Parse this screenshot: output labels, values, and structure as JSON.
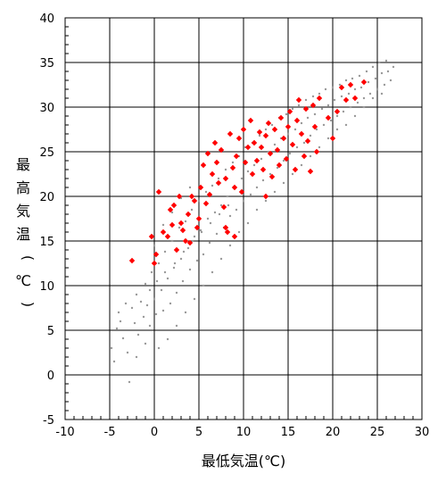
{
  "chart_data": {
    "type": "scatter",
    "xlabel": "最低気温(℃)",
    "ylabel": "最高気温(℃)",
    "xlim": [
      -10,
      30
    ],
    "ylim": [
      -5,
      40
    ],
    "x_ticks": [
      -10,
      -5,
      0,
      5,
      10,
      15,
      20,
      25,
      30
    ],
    "y_ticks": [
      -5,
      0,
      5,
      10,
      15,
      20,
      25,
      30,
      35,
      40
    ],
    "grid": true,
    "colors": {
      "background_series": "#9a9a9a",
      "highlight_series": "#ff0000",
      "grid": "#000000"
    },
    "series": [
      {
        "marker": "dot",
        "color": "#9a9a9a",
        "description": "background cloud",
        "points": [
          [
            -4.8,
            3.0
          ],
          [
            -4.5,
            1.5
          ],
          [
            -4.2,
            5.2
          ],
          [
            -3.8,
            6.0
          ],
          [
            -3.5,
            4.1
          ],
          [
            -3.0,
            2.5
          ],
          [
            -2.8,
            -0.8
          ],
          [
            -2.5,
            7.5
          ],
          [
            -2.2,
            5.8
          ],
          [
            -2.0,
            9.0
          ],
          [
            -1.8,
            4.5
          ],
          [
            -1.5,
            8.2
          ],
          [
            -1.2,
            6.5
          ],
          [
            -1.0,
            10.2
          ],
          [
            -0.8,
            7.8
          ],
          [
            -0.5,
            5.5
          ],
          [
            -0.3,
            11.5
          ],
          [
            0.0,
            8.5
          ],
          [
            0.2,
            6.8
          ],
          [
            0.5,
            12.5
          ],
          [
            0.8,
            9.5
          ],
          [
            1.0,
            7.2
          ],
          [
            1.2,
            13.8
          ],
          [
            1.5,
            10.8
          ],
          [
            1.8,
            8.0
          ],
          [
            2.0,
            15.0
          ],
          [
            2.2,
            12.0
          ],
          [
            2.5,
            9.2
          ],
          [
            2.8,
            16.5
          ],
          [
            3.0,
            13.0
          ],
          [
            3.2,
            10.5
          ],
          [
            3.5,
            17.2
          ],
          [
            3.8,
            14.2
          ],
          [
            4.0,
            11.8
          ],
          [
            4.2,
            18.5
          ],
          [
            4.5,
            15.5
          ],
          [
            4.8,
            12.8
          ],
          [
            5.0,
            19.5
          ],
          [
            5.2,
            16.2
          ],
          [
            5.5,
            13.5
          ],
          [
            5.8,
            20.5
          ],
          [
            6.0,
            17.5
          ],
          [
            6.2,
            14.8
          ],
          [
            6.5,
            21.2
          ],
          [
            6.8,
            18.2
          ],
          [
            7.0,
            15.8
          ],
          [
            7.2,
            22.0
          ],
          [
            7.5,
            19.0
          ],
          [
            7.8,
            16.5
          ],
          [
            8.0,
            23.0
          ],
          [
            8.2,
            20.0
          ],
          [
            8.5,
            17.8
          ],
          [
            8.8,
            23.8
          ],
          [
            9.0,
            21.0
          ],
          [
            9.2,
            18.5
          ],
          [
            9.5,
            24.5
          ],
          [
            9.8,
            22.0
          ],
          [
            10.0,
            19.5
          ],
          [
            10.2,
            25.5
          ],
          [
            10.5,
            22.8
          ],
          [
            10.8,
            20.2
          ],
          [
            11.0,
            26.0
          ],
          [
            11.2,
            23.5
          ],
          [
            11.5,
            21.0
          ],
          [
            11.8,
            26.8
          ],
          [
            12.0,
            24.2
          ],
          [
            12.2,
            21.8
          ],
          [
            12.5,
            27.5
          ],
          [
            12.8,
            25.0
          ],
          [
            13.0,
            22.5
          ],
          [
            13.2,
            28.0
          ],
          [
            13.5,
            25.8
          ],
          [
            13.8,
            23.2
          ],
          [
            14.0,
            28.8
          ],
          [
            14.2,
            26.5
          ],
          [
            14.5,
            24.0
          ],
          [
            14.8,
            29.2
          ],
          [
            15.0,
            27.0
          ],
          [
            15.2,
            24.8
          ],
          [
            15.5,
            29.8
          ],
          [
            15.8,
            27.5
          ],
          [
            16.0,
            25.5
          ],
          [
            16.2,
            30.2
          ],
          [
            16.5,
            28.2
          ],
          [
            16.8,
            26.0
          ],
          [
            17.0,
            30.8
          ],
          [
            17.2,
            28.8
          ],
          [
            17.5,
            26.8
          ],
          [
            17.8,
            31.2
          ],
          [
            18.0,
            29.2
          ],
          [
            18.2,
            27.5
          ],
          [
            18.5,
            31.5
          ],
          [
            18.8,
            29.8
          ],
          [
            19.0,
            28.0
          ],
          [
            19.2,
            32.0
          ],
          [
            19.5,
            30.2
          ],
          [
            19.8,
            28.5
          ],
          [
            20.0,
            32.2
          ],
          [
            20.2,
            30.8
          ],
          [
            20.5,
            29.0
          ],
          [
            20.8,
            32.5
          ],
          [
            21.0,
            31.2
          ],
          [
            21.2,
            29.5
          ],
          [
            21.5,
            33.0
          ],
          [
            21.8,
            31.5
          ],
          [
            22.0,
            30.0
          ],
          [
            22.2,
            33.2
          ],
          [
            22.5,
            32.0
          ],
          [
            22.8,
            30.5
          ],
          [
            23.0,
            33.5
          ],
          [
            23.2,
            32.2
          ],
          [
            23.5,
            31.0
          ],
          [
            23.8,
            34.0
          ],
          [
            24.0,
            32.8
          ],
          [
            24.2,
            31.5
          ],
          [
            24.5,
            34.5
          ],
          [
            24.8,
            33.2
          ],
          [
            25.0,
            32.0
          ],
          [
            25.2,
            35.0
          ],
          [
            25.5,
            33.8
          ],
          [
            25.8,
            32.5
          ],
          [
            26.0,
            35.2
          ],
          [
            26.2,
            34.0
          ],
          [
            26.5,
            33.0
          ],
          [
            26.8,
            34.5
          ],
          [
            -3.2,
            8.0
          ],
          [
            -2.0,
            2.0
          ],
          [
            -1.0,
            3.5
          ],
          [
            0.5,
            3.0
          ],
          [
            1.5,
            4.0
          ],
          [
            2.5,
            5.5
          ],
          [
            3.5,
            7.0
          ],
          [
            4.5,
            8.5
          ],
          [
            5.5,
            10.0
          ],
          [
            6.5,
            11.5
          ],
          [
            7.5,
            13.0
          ],
          [
            8.5,
            14.5
          ],
          [
            9.5,
            16.0
          ],
          [
            10.5,
            17.0
          ],
          [
            11.5,
            18.5
          ],
          [
            12.5,
            19.5
          ],
          [
            13.5,
            20.5
          ],
          [
            14.5,
            21.5
          ],
          [
            15.5,
            22.5
          ],
          [
            16.5,
            23.5
          ],
          [
            17.5,
            24.5
          ],
          [
            18.5,
            25.5
          ],
          [
            19.5,
            26.5
          ],
          [
            20.5,
            27.5
          ],
          [
            21.5,
            28.0
          ],
          [
            22.5,
            29.0
          ],
          [
            23.5,
            30.0
          ],
          [
            24.5,
            31.0
          ],
          [
            25.5,
            31.5
          ],
          [
            -4.0,
            7.0
          ],
          [
            0.0,
            14.5
          ],
          [
            1.0,
            16.8
          ],
          [
            2.0,
            18.2
          ],
          [
            3.0,
            19.8
          ],
          [
            4.0,
            21.0
          ],
          [
            -0.5,
            9.5
          ],
          [
            0.3,
            10.5
          ],
          [
            1.2,
            11.5
          ],
          [
            2.3,
            12.5
          ],
          [
            3.3,
            13.8
          ],
          [
            4.3,
            15.0
          ],
          [
            5.3,
            16.0
          ],
          [
            6.3,
            17.0
          ],
          [
            7.3,
            18.0
          ],
          [
            8.3,
            19.0
          ]
        ]
      },
      {
        "marker": "diamond",
        "color": "#ff0000",
        "description": "highlighted points",
        "points": [
          [
            -2.5,
            12.8
          ],
          [
            -0.3,
            15.5
          ],
          [
            0.0,
            12.5
          ],
          [
            0.2,
            13.5
          ],
          [
            0.5,
            20.5
          ],
          [
            1.0,
            16.0
          ],
          [
            1.5,
            15.5
          ],
          [
            1.8,
            18.5
          ],
          [
            2.0,
            16.8
          ],
          [
            2.2,
            19.0
          ],
          [
            2.5,
            14.0
          ],
          [
            2.8,
            20.0
          ],
          [
            3.0,
            17.0
          ],
          [
            3.2,
            16.2
          ],
          [
            3.5,
            15.0
          ],
          [
            3.8,
            18.0
          ],
          [
            4.0,
            14.8
          ],
          [
            4.2,
            20.0
          ],
          [
            4.5,
            19.5
          ],
          [
            4.8,
            16.5
          ],
          [
            5.0,
            17.5
          ],
          [
            5.2,
            21.0
          ],
          [
            5.5,
            23.5
          ],
          [
            5.8,
            19.2
          ],
          [
            6.0,
            24.8
          ],
          [
            6.2,
            20.2
          ],
          [
            6.5,
            22.5
          ],
          [
            6.8,
            26.0
          ],
          [
            7.0,
            23.8
          ],
          [
            7.2,
            21.5
          ],
          [
            7.5,
            25.2
          ],
          [
            7.8,
            18.8
          ],
          [
            8.0,
            22.0
          ],
          [
            8.2,
            16.0
          ],
          [
            8.5,
            27.0
          ],
          [
            8.8,
            23.2
          ],
          [
            9.0,
            21.0
          ],
          [
            9.2,
            24.5
          ],
          [
            9.5,
            26.5
          ],
          [
            9.8,
            20.5
          ],
          [
            10.0,
            27.5
          ],
          [
            10.2,
            23.8
          ],
          [
            10.5,
            25.5
          ],
          [
            10.8,
            28.5
          ],
          [
            11.0,
            22.5
          ],
          [
            11.2,
            26.0
          ],
          [
            11.5,
            24.0
          ],
          [
            11.8,
            27.2
          ],
          [
            12.0,
            25.5
          ],
          [
            12.2,
            23.0
          ],
          [
            12.5,
            26.8
          ],
          [
            12.8,
            28.2
          ],
          [
            13.0,
            24.8
          ],
          [
            13.2,
            22.2
          ],
          [
            13.5,
            27.5
          ],
          [
            13.8,
            25.2
          ],
          [
            14.0,
            23.5
          ],
          [
            14.2,
            28.8
          ],
          [
            14.5,
            26.5
          ],
          [
            14.8,
            24.2
          ],
          [
            15.0,
            27.8
          ],
          [
            15.2,
            29.5
          ],
          [
            15.5,
            25.8
          ],
          [
            15.8,
            23.0
          ],
          [
            16.0,
            28.5
          ],
          [
            16.2,
            30.8
          ],
          [
            16.5,
            27.0
          ],
          [
            16.8,
            24.5
          ],
          [
            17.0,
            29.8
          ],
          [
            17.2,
            26.2
          ],
          [
            17.5,
            22.8
          ],
          [
            17.8,
            30.2
          ],
          [
            18.0,
            27.8
          ],
          [
            18.2,
            25.0
          ],
          [
            18.5,
            31.0
          ],
          [
            19.5,
            28.8
          ],
          [
            20.0,
            26.5
          ],
          [
            20.5,
            29.5
          ],
          [
            21.0,
            32.2
          ],
          [
            21.5,
            30.8
          ],
          [
            22.0,
            32.5
          ],
          [
            22.5,
            31.0
          ],
          [
            23.5,
            32.8
          ],
          [
            9.0,
            15.5
          ],
          [
            12.5,
            20.0
          ],
          [
            8.0,
            16.5
          ]
        ]
      }
    ]
  }
}
